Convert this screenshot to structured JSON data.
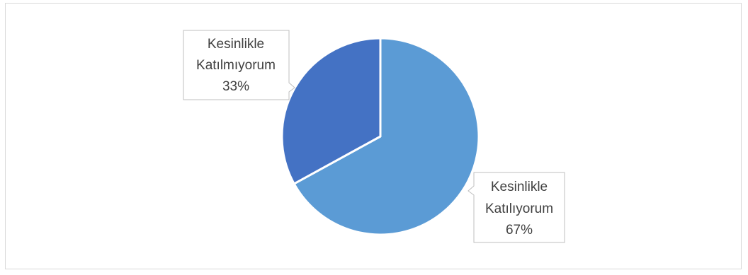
{
  "chart_data": {
    "type": "pie",
    "title": "",
    "slices": [
      {
        "name_lines": [
          "Kesinlikle",
          "Katılıyorum"
        ],
        "value": 67,
        "percent_label": "67%",
        "color": "#5b9bd5"
      },
      {
        "name_lines": [
          "Kesinlikle",
          "Katılmıyorum"
        ],
        "value": 33,
        "percent_label": "33%",
        "color": "#4472c4"
      }
    ],
    "start_angle_deg": 0,
    "direction": "clockwise",
    "legend": "none",
    "data_labels": "callout"
  }
}
